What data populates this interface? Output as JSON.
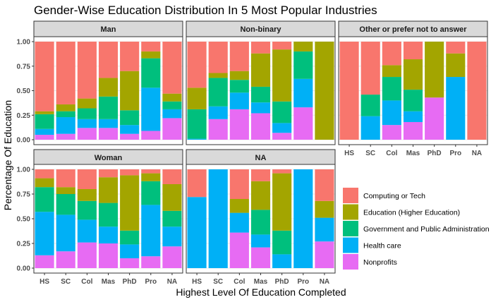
{
  "chart_data": {
    "type": "bar",
    "stacked": "percent",
    "title": "Gender-Wise Education Distribution In 5 Most Popular Industries",
    "xlabel": "Highest Level Of Education Completed",
    "ylabel": "Percentage Of Education",
    "categories": [
      "HS",
      "SC",
      "Col",
      "Mas",
      "PhD",
      "Pro",
      "NA"
    ],
    "yticks": [
      "0.00",
      "0.25",
      "0.50",
      "0.75",
      "1.00"
    ],
    "ylim": [
      0,
      1
    ],
    "stack_order_bottom_to_top": [
      "Nonprofits",
      "Health care",
      "Government and Public Administration",
      "Education (Higher Education)",
      "Computing or Tech"
    ],
    "legend": {
      "position": "right",
      "entries": [
        {
          "name": "Computing or Tech",
          "color": "#F8766D"
        },
        {
          "name": "Education (Higher Education)",
          "color": "#A3A500"
        },
        {
          "name": "Government and Public Administration",
          "color": "#00BF7D"
        },
        {
          "name": "Health care",
          "color": "#00B0F6"
        },
        {
          "name": "Nonprofits",
          "color": "#E76BF3"
        }
      ]
    },
    "grid": true,
    "panels": [
      {
        "label": "Man",
        "bars": [
          [
            0.05,
            0.06,
            0.15,
            0.03,
            0.71
          ],
          [
            0.06,
            0.17,
            0.06,
            0.07,
            0.64
          ],
          [
            0.12,
            0.09,
            0.11,
            0.1,
            0.58
          ],
          [
            0.12,
            0.09,
            0.23,
            0.19,
            0.37
          ],
          [
            0.06,
            0.09,
            0.15,
            0.4,
            0.3
          ],
          [
            0.09,
            0.44,
            0.3,
            0.07,
            0.1
          ],
          [
            0.22,
            0.09,
            0.08,
            0.08,
            0.53
          ]
        ]
      },
      {
        "label": "Non-binary",
        "bars": [
          [
            0.0,
            0.01,
            0.3,
            0.22,
            0.47
          ],
          [
            0.21,
            0.13,
            0.29,
            0.05,
            0.32
          ],
          [
            0.31,
            0.17,
            0.13,
            0.09,
            0.3
          ],
          [
            0.27,
            0.11,
            0.16,
            0.34,
            0.12
          ],
          [
            0.07,
            0.1,
            0.22,
            0.53,
            0.08
          ],
          [
            0.33,
            0.29,
            0.28,
            0.1,
            0.0
          ],
          [
            0.0,
            0.0,
            0.0,
            1.0,
            0.0
          ]
        ]
      },
      {
        "label": "Other or prefer not to answer",
        "bars": [
          [
            0.0,
            0.0,
            0.0,
            0.0,
            1.0
          ],
          [
            0.0,
            0.24,
            0.22,
            0.0,
            0.54
          ],
          [
            0.15,
            0.25,
            0.24,
            0.12,
            0.24
          ],
          [
            0.18,
            0.11,
            0.22,
            0.31,
            0.18
          ],
          [
            0.43,
            0.0,
            0.0,
            0.57,
            0.0
          ],
          [
            0.0,
            0.64,
            0.0,
            0.24,
            0.12
          ],
          [
            0.0,
            0.0,
            0.0,
            0.0,
            1.0
          ]
        ]
      },
      {
        "label": "Woman",
        "bars": [
          [
            0.13,
            0.44,
            0.25,
            0.09,
            0.09
          ],
          [
            0.17,
            0.37,
            0.21,
            0.07,
            0.18
          ],
          [
            0.26,
            0.23,
            0.19,
            0.12,
            0.2
          ],
          [
            0.25,
            0.17,
            0.24,
            0.26,
            0.08
          ],
          [
            0.1,
            0.14,
            0.14,
            0.56,
            0.06
          ],
          [
            0.12,
            0.52,
            0.24,
            0.08,
            0.04
          ],
          [
            0.22,
            0.2,
            0.16,
            0.27,
            0.15
          ]
        ]
      },
      {
        "label": "NA",
        "bars": [
          [
            0.0,
            0.72,
            0.0,
            0.0,
            0.28
          ],
          [
            0.0,
            1.0,
            0.0,
            0.0,
            0.0
          ],
          [
            0.36,
            0.2,
            0.0,
            0.14,
            0.3
          ],
          [
            0.21,
            0.13,
            0.25,
            0.29,
            0.12
          ],
          [
            0.0,
            0.14,
            0.24,
            0.58,
            0.04
          ],
          [
            0.0,
            1.0,
            0.0,
            0.0,
            0.0
          ],
          [
            0.27,
            0.24,
            0.0,
            0.17,
            0.32
          ]
        ]
      }
    ]
  }
}
